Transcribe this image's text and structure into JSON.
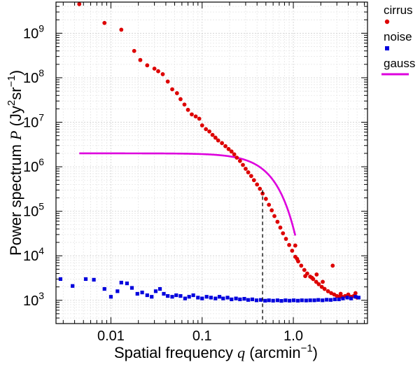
{
  "chart_data": {
    "type": "scatter",
    "xscale": "log",
    "yscale": "log",
    "xlim": [
      0.0025,
      6.5
    ],
    "ylim": [
      300,
      5000000000.0
    ],
    "xticks": [
      {
        "value": 0.01,
        "label": "0.01"
      },
      {
        "value": 0.1,
        "label": "0.1"
      },
      {
        "value": 1.0,
        "label": "1.0"
      }
    ],
    "yticks": [
      {
        "value": 1000.0,
        "base": "10",
        "exp": "3"
      },
      {
        "value": 10000.0,
        "base": "10",
        "exp": "4"
      },
      {
        "value": 100000.0,
        "base": "10",
        "exp": "5"
      },
      {
        "value": 1000000.0,
        "base": "10",
        "exp": "6"
      },
      {
        "value": 10000000.0,
        "base": "10",
        "exp": "7"
      },
      {
        "value": 100000000.0,
        "base": "10",
        "exp": "8"
      },
      {
        "value": 1000000000.0,
        "base": "10",
        "exp": "9"
      }
    ],
    "xlabel": {
      "prefix": "Spatial frequency ",
      "symbol": "q",
      "unit_open": " (arcmin",
      "unit_exp": "−1",
      "unit_close": ")"
    },
    "ylabel": {
      "prefix": "Power spectrum ",
      "symbol": "P",
      "unit_open": " (Jy",
      "unit_exp1": "2",
      "unit_mid": "sr",
      "unit_exp2": "−1",
      "unit_close": ")"
    },
    "grid": true,
    "vline": {
      "x": 0.46,
      "style": "dashed",
      "color": "#000000"
    },
    "series": [
      {
        "name": "cirrus",
        "marker": "circle",
        "color": "#dd0000",
        "points": [
          [
            0.0045,
            4500000000.0
          ],
          [
            0.0085,
            1700000000.0
          ],
          [
            0.013,
            1200000000.0
          ],
          [
            0.018,
            400000000.0
          ],
          [
            0.021,
            250000000.0
          ],
          [
            0.025,
            190000000.0
          ],
          [
            0.03,
            160000000.0
          ],
          [
            0.033,
            140000000.0
          ],
          [
            0.037,
            120000000.0
          ],
          [
            0.042,
            82000000.0
          ],
          [
            0.047,
            55000000.0
          ],
          [
            0.053,
            45000000.0
          ],
          [
            0.058,
            33000000.0
          ],
          [
            0.064,
            25000000.0
          ],
          [
            0.07,
            19000000.0
          ],
          [
            0.077,
            15000000.0
          ],
          [
            0.085,
            13500000.0
          ],
          [
            0.093,
            12000000.0
          ],
          [
            0.1,
            8500000.0
          ],
          [
            0.11,
            7000000.0
          ],
          [
            0.12,
            6200000.0
          ],
          [
            0.13,
            5200000.0
          ],
          [
            0.14,
            4500000.0
          ],
          [
            0.15,
            3900000.0
          ],
          [
            0.165,
            3400000.0
          ],
          [
            0.18,
            2900000.0
          ],
          [
            0.195,
            2500000.0
          ],
          [
            0.21,
            2200000.0
          ],
          [
            0.225,
            1900000.0
          ],
          [
            0.24,
            1600000.0
          ],
          [
            0.26,
            1350000.0
          ],
          [
            0.28,
            1100000.0
          ],
          [
            0.3,
            900000.0
          ],
          [
            0.32,
            750000.0
          ],
          [
            0.345,
            620000.0
          ],
          [
            0.37,
            500000.0
          ],
          [
            0.4,
            400000.0
          ],
          [
            0.43,
            320000.0
          ],
          [
            0.46,
            250000.0
          ],
          [
            0.5,
            190000.0
          ],
          [
            0.54,
            140000.0
          ],
          [
            0.58,
            105000.0
          ],
          [
            0.62,
            78000.0
          ],
          [
            0.67,
            58000.0
          ],
          [
            0.72,
            43000.0
          ],
          [
            0.77,
            32000.0
          ],
          [
            0.83,
            24000.0
          ],
          [
            0.9,
            17500.0
          ],
          [
            0.97,
            13000.0
          ],
          [
            1.05,
            9500.0
          ],
          [
            1.13,
            7500.0
          ],
          [
            1.22,
            6000.0
          ],
          [
            1.32,
            4800.0
          ],
          [
            1.42,
            4000.0
          ],
          [
            1.53,
            3400.0
          ],
          [
            1.65,
            3000.0
          ],
          [
            1.78,
            2600.0
          ],
          [
            1.9,
            2300.0
          ],
          [
            2.05,
            2000.0
          ],
          [
            2.2,
            1800.0
          ],
          [
            2.4,
            1600.0
          ],
          [
            2.6,
            1450.0
          ],
          [
            2.8,
            1350.0
          ],
          [
            3.0,
            1250.0
          ],
          [
            3.2,
            1200.0
          ],
          [
            3.4,
            1200.0
          ],
          [
            3.7,
            1250.0
          ],
          [
            4.0,
            1350.0
          ],
          [
            4.3,
            1200.0
          ],
          [
            4.6,
            1250.0
          ],
          [
            5.0,
            1150.0
          ],
          [
            1.05,
            17000.0
          ],
          [
            1.35,
            3500.0
          ],
          [
            1.8,
            3800.0
          ],
          [
            2.7,
            6000.0
          ],
          [
            3.3,
            1400.0
          ],
          [
            2.1,
            2600.0
          ],
          [
            1.1,
            8500.0
          ],
          [
            1.6,
            3200.0
          ],
          [
            4.8,
            1450.0
          ]
        ]
      },
      {
        "name": "noise",
        "marker": "square",
        "color": "#0000dd",
        "points": [
          [
            0.0028,
            3000.0
          ],
          [
            0.0038,
            2100.0
          ],
          [
            0.0053,
            3000.0
          ],
          [
            0.0065,
            2900.0
          ],
          [
            0.0085,
            1800.0
          ],
          [
            0.01,
            1200.0
          ],
          [
            0.0118,
            1600.0
          ],
          [
            0.013,
            2500.0
          ],
          [
            0.015,
            2400.0
          ],
          [
            0.017,
            1900.0
          ],
          [
            0.0195,
            1400.0
          ],
          [
            0.022,
            1500.0
          ],
          [
            0.025,
            1300.0
          ],
          [
            0.028,
            1200.0
          ],
          [
            0.031,
            1600.0
          ],
          [
            0.0345,
            1800.0
          ],
          [
            0.038,
            1400.0
          ],
          [
            0.042,
            1250.0
          ],
          [
            0.047,
            1200.0
          ],
          [
            0.052,
            1300.0
          ],
          [
            0.058,
            1250.0
          ],
          [
            0.065,
            1100.0
          ],
          [
            0.072,
            1200.0
          ],
          [
            0.08,
            1300.0
          ],
          [
            0.09,
            1150.0
          ],
          [
            0.1,
            1100.0
          ],
          [
            0.112,
            1200.0
          ],
          [
            0.125,
            1150.0
          ],
          [
            0.14,
            1100.0
          ],
          [
            0.155,
            1200.0
          ],
          [
            0.17,
            1100.0
          ],
          [
            0.19,
            1150.0
          ],
          [
            0.21,
            1050.0
          ],
          [
            0.235,
            1100.0
          ],
          [
            0.26,
            1050.0
          ],
          [
            0.29,
            1080.0
          ],
          [
            0.32,
            1020.0
          ],
          [
            0.355,
            1050.0
          ],
          [
            0.395,
            1000.0
          ],
          [
            0.44,
            1020.0
          ],
          [
            0.49,
            980.0
          ],
          [
            0.54,
            1000.0
          ],
          [
            0.6,
            980.0
          ],
          [
            0.67,
            1000.0
          ],
          [
            0.74,
            970.0
          ],
          [
            0.82,
            1000.0
          ],
          [
            0.91,
            980.0
          ],
          [
            1.01,
            1000.0
          ],
          [
            1.12,
            980.0
          ],
          [
            1.24,
            1000.0
          ],
          [
            1.38,
            990.0
          ],
          [
            1.53,
            1000.0
          ],
          [
            1.7,
            1000.0
          ],
          [
            1.88,
            1020.0
          ],
          [
            2.09,
            1000.0
          ],
          [
            2.32,
            1030.0
          ],
          [
            2.57,
            1020.0
          ],
          [
            2.85,
            1050.0
          ],
          [
            3.16,
            1050.0
          ],
          [
            3.5,
            1100.0
          ],
          [
            3.9,
            1150.0
          ],
          [
            4.3,
            1100.0
          ],
          [
            4.8,
            1200.0
          ],
          [
            5.2,
            1150.0
          ]
        ]
      },
      {
        "name": "gauss",
        "marker": "line",
        "color": "#dd00dd",
        "amplitude": 2000000.0,
        "sigma_arcmin_inv": 0.36,
        "x_range": [
          0.0045,
          1.05
        ]
      }
    ]
  }
}
